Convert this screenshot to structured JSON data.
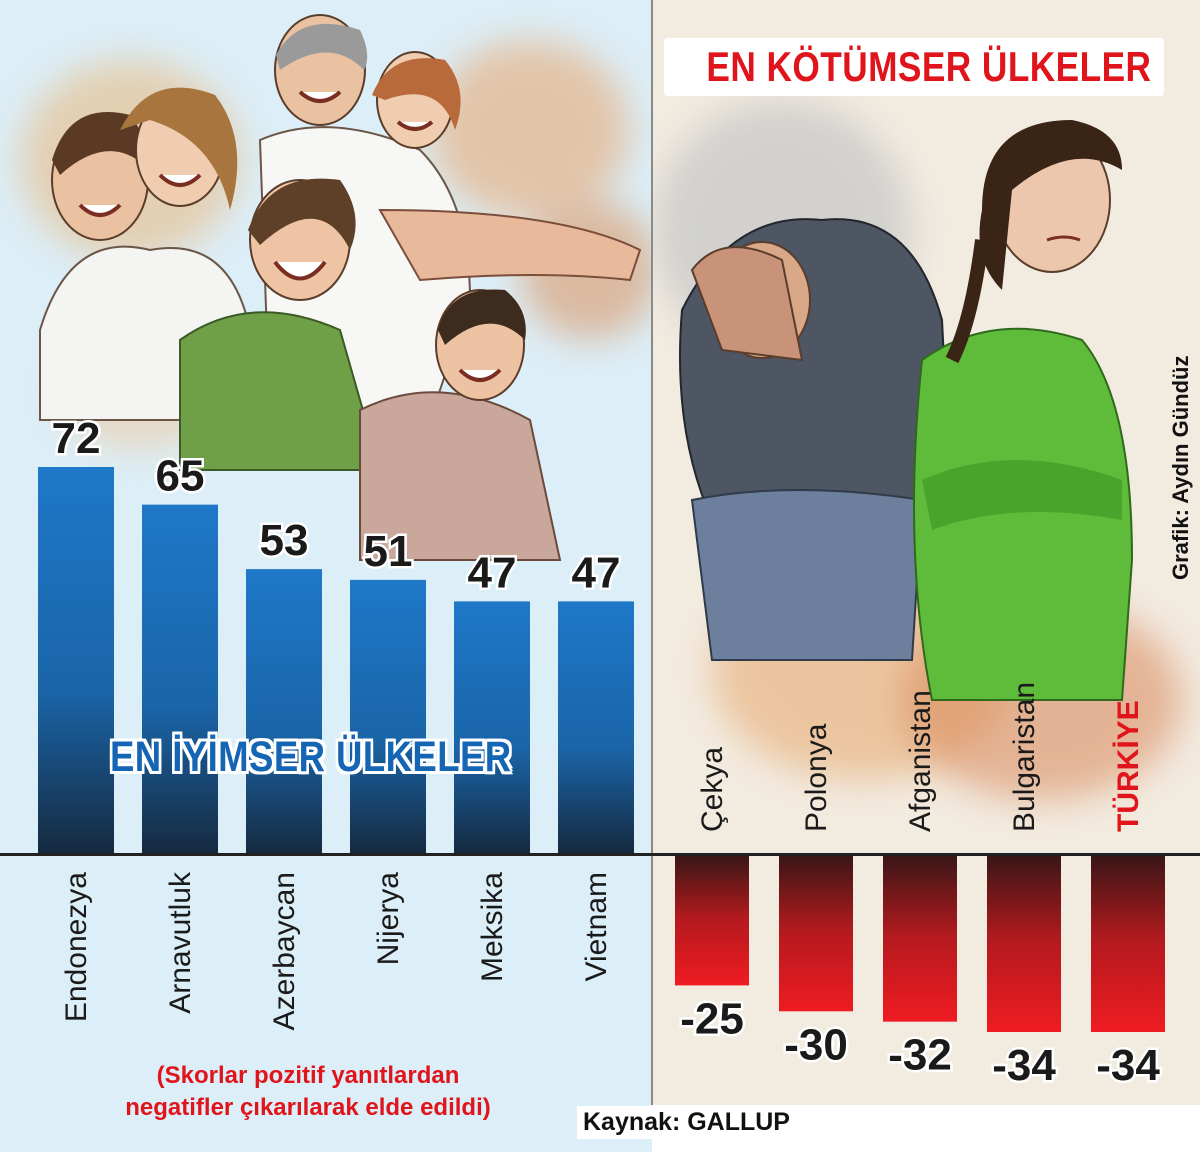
{
  "titles": {
    "best": "EN İYİMSER ÜLKELER",
    "worst": "EN KÖTÜMSER ÜLKELER"
  },
  "note": {
    "line1": "(Skorlar pozitif yanıtlardan",
    "line2": "negatifler çıkarılarak elde edildi)"
  },
  "source": "Kaynak: GALLUP",
  "credit": "Grafik: Aydın Gündüz",
  "colors": {
    "best_bar": "#1f78c8",
    "best_bar_dark": "#162a3f",
    "worst_bar": "#ef1b22",
    "worst_bar_dark": "#3a1616",
    "highlight_label": "#e0151b"
  },
  "chart_data": [
    {
      "type": "bar",
      "title": "EN İYİMSER ÜLKELER",
      "categories": [
        "Endonezya",
        "Arnavutluk",
        "Azerbaycan",
        "Nijerya",
        "Meksika",
        "Vietnam"
      ],
      "values": [
        72,
        65,
        53,
        51,
        47,
        47
      ],
      "ylim": [
        0,
        72
      ]
    },
    {
      "type": "bar",
      "title": "EN KÖTÜMSER ÜLKELER",
      "categories": [
        "Çekya",
        "Polonya",
        "Afganistan",
        "Bulgaristan",
        "TÜRKİYE"
      ],
      "values": [
        -25,
        -30,
        -32,
        -34,
        -34
      ],
      "highlight": "TÜRKİYE",
      "ylim": [
        -34,
        0
      ]
    }
  ]
}
